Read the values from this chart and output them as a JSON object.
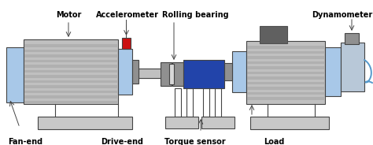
{
  "bg_color": "#ffffff",
  "motor_color": "#c0c0c0",
  "stripe_color": "#b0b0b0",
  "blue_end_color": "#a8c8e8",
  "blue_end_dark": "#7aaad0",
  "dark_blue_color": "#2244aa",
  "red_color": "#cc1111",
  "base_color": "#c8c8c8",
  "dark_gray": "#606060",
  "med_gray": "#909090",
  "shaft_color": "#c0c0c0",
  "border_color": "#444444",
  "dynamometer_color": "#b8c8d8",
  "wire_color": "#5599cc",
  "labels": {
    "motor": "Motor",
    "accelerometer": "Accelerometer",
    "rolling_bearing": "Rolling bearing",
    "dynamometer": "Dynamometer",
    "fan_end": "Fan-end",
    "drive_end": "Drive-end",
    "torque_sensor": "Torque sensor",
    "load": "Load"
  },
  "fig_width": 4.74,
  "fig_height": 1.84,
  "dpi": 100
}
